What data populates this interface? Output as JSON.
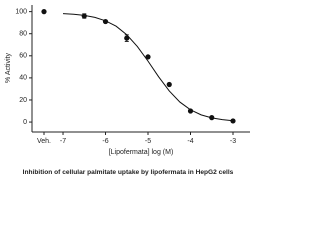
{
  "chart_data": {
    "type": "scatter",
    "x_label": "[Lipofermata] log (M)",
    "y_label": "% Activity",
    "caption": "Inhibition of cellular palmitate uptake by lipofermata in HepG2 cells",
    "vehicle": {
      "label": "Veh.",
      "value": 100
    },
    "x": [
      -6.5,
      -6,
      -5.5,
      -5,
      -4.5,
      -4,
      -3.5,
      -3
    ],
    "values": [
      96,
      91,
      76,
      59,
      34,
      10,
      4,
      1
    ],
    "errors": [
      2,
      null,
      3,
      null,
      null,
      null,
      null,
      null
    ],
    "fit": {
      "x": [
        -7,
        -6.75,
        -6.5,
        -6.25,
        -6,
        -5.75,
        -5.5,
        -5.25,
        -5,
        -4.75,
        -4.5,
        -4.25,
        -4,
        -3.75,
        -3.5,
        -3.25,
        -3
      ],
      "values": [
        98.2,
        97.6,
        96.6,
        94.8,
        91.7,
        86.8,
        79.1,
        68.4,
        55.2,
        41.0,
        28.2,
        18.1,
        11.1,
        6.5,
        3.8,
        2.2,
        1.2
      ]
    },
    "color": "#111111",
    "xlim": [
      -7.73,
      -2.6
    ],
    "xticks": [
      -7,
      -6,
      -5,
      -4,
      -3
    ],
    "ylim": [
      -9,
      106
    ],
    "yticks": [
      0,
      20,
      40,
      60,
      80,
      100
    ]
  }
}
